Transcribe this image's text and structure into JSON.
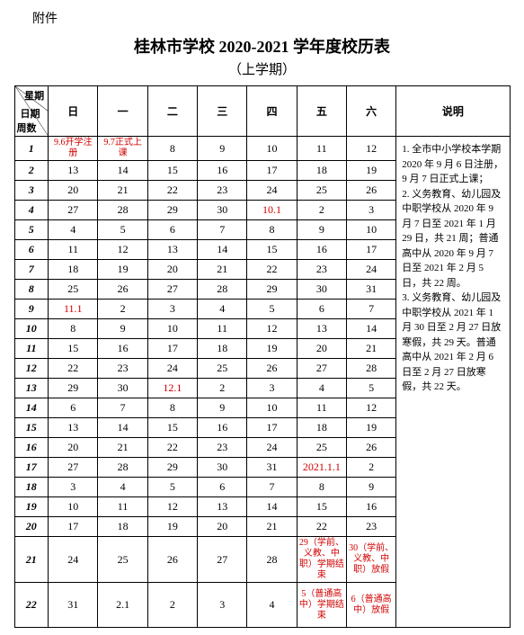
{
  "attachment_label": "附件",
  "title": "桂林市学校 2020-2021 学年度校历表",
  "subtitle": "（上学期）",
  "diag": {
    "top": "星期",
    "mid": "日期",
    "bot": "周数"
  },
  "day_headers": [
    "日",
    "一",
    "二",
    "三",
    "四",
    "五",
    "六"
  ],
  "note_header": "说明",
  "notes": "1. 全市中小学校本学期 2020 年 9 月 6 日注册，9 月 7 日正式上课；\n2. 义务教育、幼儿园及中职学校从 2020 年 9 月 7 日至 2021 年 1 月 29 日，共 21 周；普通高中从 2020 年 9 月 7 日至 2021 年 2 月 5 日，共 22 周。\n3. 义务教育、幼儿园及中职学校从 2021 年 1 月 30 日至 2 月 27 日放寒假，共 29 天。普通高中从 2021 年 2 月 6 日至 2 月 27 日放寒假，共 22 天。",
  "rows": [
    {
      "w": "1",
      "c": [
        {
          "t": "9.6开学注册",
          "r": true,
          "m": true
        },
        {
          "t": "9.7正式上课",
          "r": true,
          "m": true
        },
        {
          "t": "8"
        },
        {
          "t": "9"
        },
        {
          "t": "10"
        },
        {
          "t": "11"
        },
        {
          "t": "12"
        }
      ]
    },
    {
      "w": "2",
      "c": [
        {
          "t": "13"
        },
        {
          "t": "14"
        },
        {
          "t": "15"
        },
        {
          "t": "16"
        },
        {
          "t": "17"
        },
        {
          "t": "18"
        },
        {
          "t": "19"
        }
      ]
    },
    {
      "w": "3",
      "c": [
        {
          "t": "20"
        },
        {
          "t": "21"
        },
        {
          "t": "22"
        },
        {
          "t": "23"
        },
        {
          "t": "24"
        },
        {
          "t": "25"
        },
        {
          "t": "26"
        }
      ]
    },
    {
      "w": "4",
      "c": [
        {
          "t": "27"
        },
        {
          "t": "28"
        },
        {
          "t": "29"
        },
        {
          "t": "30"
        },
        {
          "t": "10.1",
          "r": true
        },
        {
          "t": "2"
        },
        {
          "t": "3"
        }
      ]
    },
    {
      "w": "5",
      "c": [
        {
          "t": "4"
        },
        {
          "t": "5"
        },
        {
          "t": "6"
        },
        {
          "t": "7"
        },
        {
          "t": "8"
        },
        {
          "t": "9"
        },
        {
          "t": "10"
        }
      ]
    },
    {
      "w": "6",
      "c": [
        {
          "t": "11"
        },
        {
          "t": "12"
        },
        {
          "t": "13"
        },
        {
          "t": "14"
        },
        {
          "t": "15"
        },
        {
          "t": "16"
        },
        {
          "t": "17"
        }
      ]
    },
    {
      "w": "7",
      "c": [
        {
          "t": "18"
        },
        {
          "t": "19"
        },
        {
          "t": "20"
        },
        {
          "t": "21"
        },
        {
          "t": "22"
        },
        {
          "t": "23"
        },
        {
          "t": "24"
        }
      ]
    },
    {
      "w": "8",
      "c": [
        {
          "t": "25"
        },
        {
          "t": "26"
        },
        {
          "t": "27"
        },
        {
          "t": "28"
        },
        {
          "t": "29"
        },
        {
          "t": "30"
        },
        {
          "t": "31"
        }
      ]
    },
    {
      "w": "9",
      "c": [
        {
          "t": "11.1",
          "r": true
        },
        {
          "t": "2"
        },
        {
          "t": "3"
        },
        {
          "t": "4"
        },
        {
          "t": "5"
        },
        {
          "t": "6"
        },
        {
          "t": "7"
        }
      ]
    },
    {
      "w": "10",
      "c": [
        {
          "t": "8"
        },
        {
          "t": "9"
        },
        {
          "t": "10"
        },
        {
          "t": "11"
        },
        {
          "t": "12"
        },
        {
          "t": "13"
        },
        {
          "t": "14"
        }
      ]
    },
    {
      "w": "11",
      "c": [
        {
          "t": "15"
        },
        {
          "t": "16"
        },
        {
          "t": "17"
        },
        {
          "t": "18"
        },
        {
          "t": "19"
        },
        {
          "t": "20"
        },
        {
          "t": "21"
        }
      ]
    },
    {
      "w": "12",
      "c": [
        {
          "t": "22"
        },
        {
          "t": "23"
        },
        {
          "t": "24"
        },
        {
          "t": "25"
        },
        {
          "t": "26"
        },
        {
          "t": "27"
        },
        {
          "t": "28"
        }
      ]
    },
    {
      "w": "13",
      "c": [
        {
          "t": "29"
        },
        {
          "t": "30"
        },
        {
          "t": "12.1",
          "r": true
        },
        {
          "t": "2"
        },
        {
          "t": "3"
        },
        {
          "t": "4"
        },
        {
          "t": "5"
        }
      ]
    },
    {
      "w": "14",
      "c": [
        {
          "t": "6"
        },
        {
          "t": "7"
        },
        {
          "t": "8"
        },
        {
          "t": "9"
        },
        {
          "t": "10"
        },
        {
          "t": "11"
        },
        {
          "t": "12"
        }
      ]
    },
    {
      "w": "15",
      "c": [
        {
          "t": "13"
        },
        {
          "t": "14"
        },
        {
          "t": "15"
        },
        {
          "t": "16"
        },
        {
          "t": "17"
        },
        {
          "t": "18"
        },
        {
          "t": "19"
        }
      ]
    },
    {
      "w": "16",
      "c": [
        {
          "t": "20"
        },
        {
          "t": "21"
        },
        {
          "t": "22"
        },
        {
          "t": "23"
        },
        {
          "t": "24"
        },
        {
          "t": "25"
        },
        {
          "t": "26"
        }
      ]
    },
    {
      "w": "17",
      "c": [
        {
          "t": "27"
        },
        {
          "t": "28"
        },
        {
          "t": "29"
        },
        {
          "t": "30"
        },
        {
          "t": "31"
        },
        {
          "t": "2021.1.1",
          "r": true
        },
        {
          "t": "2"
        }
      ]
    },
    {
      "w": "18",
      "c": [
        {
          "t": "3"
        },
        {
          "t": "4"
        },
        {
          "t": "5"
        },
        {
          "t": "6"
        },
        {
          "t": "7"
        },
        {
          "t": "8"
        },
        {
          "t": "9"
        }
      ]
    },
    {
      "w": "19",
      "c": [
        {
          "t": "10"
        },
        {
          "t": "11"
        },
        {
          "t": "12"
        },
        {
          "t": "13"
        },
        {
          "t": "14"
        },
        {
          "t": "15"
        },
        {
          "t": "16"
        }
      ]
    },
    {
      "w": "20",
      "c": [
        {
          "t": "17"
        },
        {
          "t": "18"
        },
        {
          "t": "19"
        },
        {
          "t": "20"
        },
        {
          "t": "21"
        },
        {
          "t": "22"
        },
        {
          "t": "23"
        }
      ]
    },
    {
      "w": "21",
      "tall": true,
      "c": [
        {
          "t": "24"
        },
        {
          "t": "25"
        },
        {
          "t": "26"
        },
        {
          "t": "27"
        },
        {
          "t": "28"
        },
        {
          "t": "29（学前、义教、中职）学期结束",
          "r": true,
          "m": true
        },
        {
          "t": "30（学前、义教、中职）放假",
          "r": true,
          "m": true
        }
      ]
    },
    {
      "w": "22",
      "tall": true,
      "c": [
        {
          "t": "31"
        },
        {
          "t": "2.1"
        },
        {
          "t": "2"
        },
        {
          "t": "3"
        },
        {
          "t": "4"
        },
        {
          "t": "5（普通高中）学期结束",
          "r": true,
          "m": true
        },
        {
          "t": "6（普通高中）放假",
          "r": true,
          "m": true
        }
      ]
    }
  ],
  "colors": {
    "red": "#d10000",
    "text": "#000000",
    "bg": "#ffffff"
  }
}
